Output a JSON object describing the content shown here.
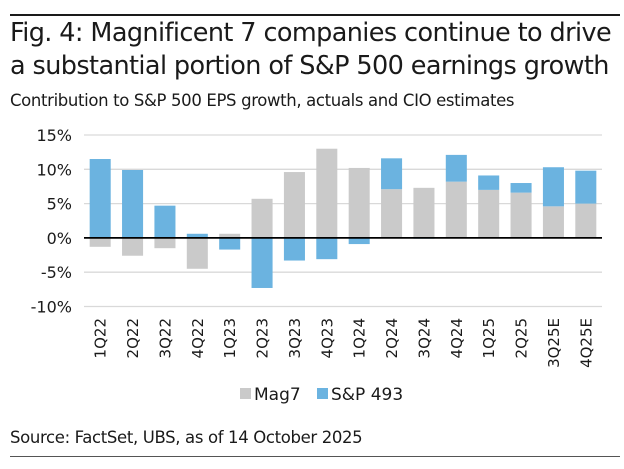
{
  "header": {
    "title_line1": "Fig. 4: Magnificent 7 companies continue to drive",
    "title_line2": "a substantial portion of S&P 500 earnings growth",
    "subtitle": "Contribution to S&P 500 EPS growth, actuals and CIO estimates"
  },
  "footer": {
    "source": "Source: FactSet, UBS, as of 14 October 2025"
  },
  "colors": {
    "mag7": "#cacaca",
    "sp493": "#6bb3e0",
    "gridline": "#d9d9d9",
    "zero_line": "#000000"
  },
  "chart_data": {
    "type": "bar",
    "stacked": true,
    "title": "Fig. 4: Magnificent 7 companies continue to drive a substantial portion of S&P 500 earnings growth",
    "subtitle": "Contribution to S&P 500 EPS growth, actuals and CIO estimates",
    "xlabel": "",
    "ylabel": "",
    "categories": [
      "1Q22",
      "2Q22",
      "3Q22",
      "4Q22",
      "1Q23",
      "2Q23",
      "3Q23",
      "4Q23",
      "1Q24",
      "2Q24",
      "3Q24",
      "4Q24",
      "1Q25",
      "2Q25",
      "3Q25E",
      "4Q25E"
    ],
    "series": [
      {
        "name": "Mag7",
        "color": "#cacaca",
        "values": [
          -1.3,
          -2.6,
          -1.5,
          -4.5,
          0.6,
          5.7,
          9.6,
          13.0,
          10.2,
          7.1,
          7.3,
          8.2,
          7.0,
          6.6,
          4.6,
          5.0
        ]
      },
      {
        "name": "S&P 493",
        "color": "#6bb3e0",
        "values": [
          11.5,
          9.9,
          4.7,
          0.6,
          -1.7,
          -7.3,
          -3.3,
          -3.1,
          -0.9,
          4.5,
          -0.1,
          3.9,
          2.1,
          1.4,
          5.7,
          4.8
        ]
      }
    ],
    "ylim": [
      -10,
      15
    ],
    "yticks": [
      15,
      10,
      5,
      0,
      -5,
      -10
    ],
    "ytick_labels": [
      "15%",
      "10%",
      "5%",
      "0%",
      "-5%",
      "-10%"
    ],
    "grid": true,
    "legend_position": "bottom-center"
  }
}
